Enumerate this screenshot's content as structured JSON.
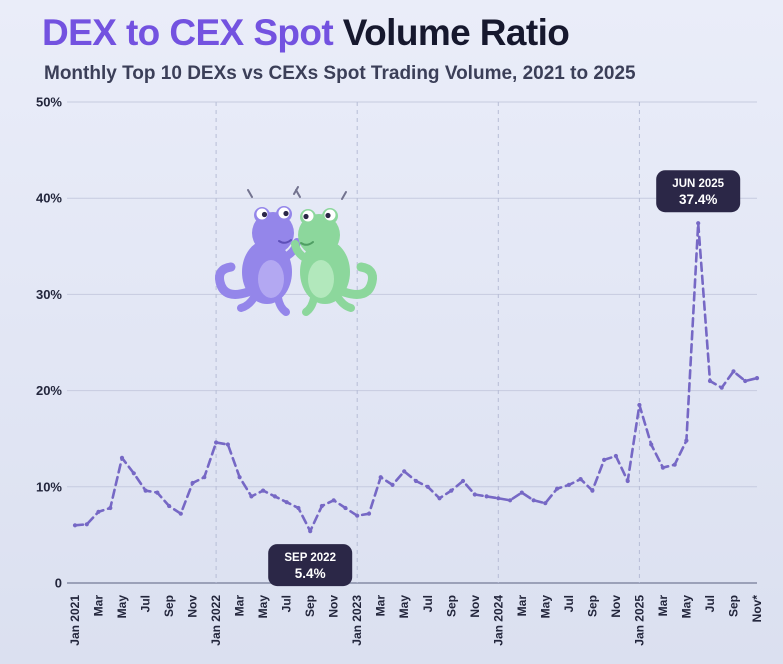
{
  "header": {
    "title_accent": "DEX to CEX Spot",
    "title_rest": " Volume Ratio",
    "subtitle": "Monthly Top 10 DEXs vs CEXs Spot Trading Volume, 2021 to 2025",
    "accent_color": "#7352e0",
    "text_color": "#16182e"
  },
  "chart_data": {
    "type": "line",
    "title": "DEX to CEX Spot Volume Ratio",
    "subtitle": "Monthly Top 10 DEXs vs CEXs Spot Trading Volume, 2021 to 2025",
    "xlabel": "",
    "ylabel": "",
    "ylim": [
      0,
      50
    ],
    "grid": true,
    "line_color": "#7668c5",
    "line_style": "dashed",
    "annotation_bg": "#2b2747",
    "y_ticks": [
      "0",
      "10%",
      "20%",
      "30%",
      "40%",
      "50%"
    ],
    "y_tick_values": [
      0,
      10,
      20,
      30,
      40,
      50
    ],
    "x_tick_every": 2,
    "x_tick_labels": [
      "Jan 2021",
      "Mar",
      "May",
      "Jul",
      "Sep",
      "Nov",
      "Jan 2022",
      "Mar",
      "May",
      "Jul",
      "Sep",
      "Nov",
      "Jan 2023",
      "Mar",
      "May",
      "Jul",
      "Sep",
      "Nov",
      "Jan 2024",
      "Mar",
      "May",
      "Jul",
      "Sep",
      "Nov",
      "Jan 2025",
      "Mar",
      "May",
      "Jul",
      "Sep",
      "Nov*"
    ],
    "year_gridline_indices": [
      12,
      24,
      36,
      48
    ],
    "x": [
      "Jan 2021",
      "Feb 2021",
      "Mar 2021",
      "Apr 2021",
      "May 2021",
      "Jun 2021",
      "Jul 2021",
      "Aug 2021",
      "Sep 2021",
      "Oct 2021",
      "Nov 2021",
      "Dec 2021",
      "Jan 2022",
      "Feb 2022",
      "Mar 2022",
      "Apr 2022",
      "May 2022",
      "Jun 2022",
      "Jul 2022",
      "Aug 2022",
      "Sep 2022",
      "Oct 2022",
      "Nov 2022",
      "Dec 2022",
      "Jan 2023",
      "Feb 2023",
      "Mar 2023",
      "Apr 2023",
      "May 2023",
      "Jun 2023",
      "Jul 2023",
      "Aug 2023",
      "Sep 2023",
      "Oct 2023",
      "Nov 2023",
      "Dec 2023",
      "Jan 2024",
      "Feb 2024",
      "Mar 2024",
      "Apr 2024",
      "May 2024",
      "Jun 2024",
      "Jul 2024",
      "Aug 2024",
      "Sep 2024",
      "Oct 2024",
      "Nov 2024",
      "Dec 2024",
      "Jan 2025",
      "Feb 2025",
      "Mar 2025",
      "Apr 2025",
      "May 2025",
      "Jun 2025",
      "Jul 2025",
      "Aug 2025",
      "Sep 2025",
      "Oct 2025",
      "Nov 2025"
    ],
    "values": [
      6.0,
      6.1,
      7.4,
      7.8,
      13.0,
      11.4,
      9.6,
      9.4,
      8.0,
      7.2,
      10.4,
      11.0,
      14.6,
      14.4,
      11.0,
      9.0,
      9.6,
      9.0,
      8.4,
      7.8,
      5.4,
      8.0,
      8.6,
      7.8,
      7.0,
      7.2,
      11.0,
      10.2,
      11.6,
      10.6,
      10.0,
      8.8,
      9.6,
      10.6,
      9.2,
      9.0,
      8.8,
      8.6,
      9.4,
      8.6,
      8.3,
      9.8,
      10.2,
      10.8,
      9.6,
      12.8,
      13.2,
      10.6,
      18.5,
      14.4,
      12.0,
      12.3,
      14.8,
      37.4,
      21.0,
      20.3,
      22.0,
      21.0,
      21.3
    ],
    "annotations": [
      {
        "label": "SEP 2022",
        "value": "5.4%",
        "index": 20,
        "position": "below"
      },
      {
        "label": "JUN 2025",
        "value": "37.4%",
        "index": 53,
        "position": "above"
      }
    ]
  }
}
